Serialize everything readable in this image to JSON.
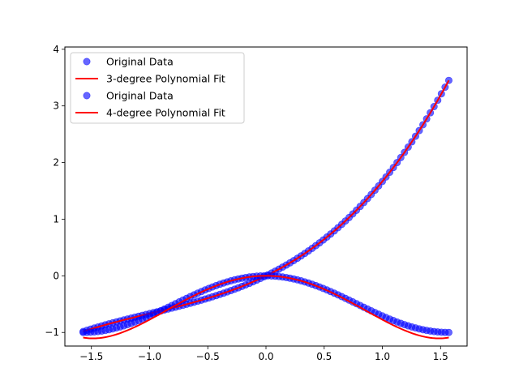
{
  "chart_data": {
    "type": "scatter",
    "title": "",
    "xlabel": "",
    "ylabel": "",
    "xlim": [
      -1.728,
      1.728
    ],
    "ylim": [
      -1.24,
      4.04
    ],
    "x_ticks": [
      -1.5,
      -1.0,
      -0.5,
      0.0,
      0.5,
      1.0,
      1.5
    ],
    "x_tick_labels": [
      "−1.5",
      "−1.0",
      "−0.5",
      "0.0",
      "0.5",
      "1.0",
      "1.5"
    ],
    "y_ticks": [
      -1,
      0,
      1,
      2,
      3,
      4
    ],
    "y_tick_labels": [
      "−1",
      "0",
      "1",
      "2",
      "3",
      "4"
    ],
    "grid": false,
    "legend_position": "top-left",
    "legend": [
      {
        "label": "Original Data",
        "kind": "marker"
      },
      {
        "label": "3-degree Polynomial Fit",
        "kind": "line"
      },
      {
        "label": "Original Data",
        "kind": "marker"
      },
      {
        "label": "4-degree Polynomial Fit",
        "kind": "line"
      }
    ],
    "series": [
      {
        "kind": "scatter",
        "function": "x + x^2/2 + x^3/6",
        "x_range": [
          -1.5708,
          1.5708
        ],
        "n_points": 100,
        "color": "#0000ff",
        "alpha": 0.6
      },
      {
        "kind": "line",
        "fit_coefficients": [
          0,
          1,
          0.5,
          0.1667
        ],
        "x_range": [
          -1.5708,
          1.5708
        ],
        "color": "#ff0000"
      },
      {
        "kind": "scatter",
        "function": "-sin(x)^2",
        "x_range": [
          -1.5708,
          1.5708
        ],
        "n_points": 100,
        "color": "#0000ff",
        "alpha": 0.6
      },
      {
        "kind": "line",
        "fit_coefficients": [
          0,
          0,
          -1,
          0,
          0.2263
        ],
        "x_range": [
          -1.5708,
          1.5708
        ],
        "color": "#ff0000"
      }
    ]
  }
}
